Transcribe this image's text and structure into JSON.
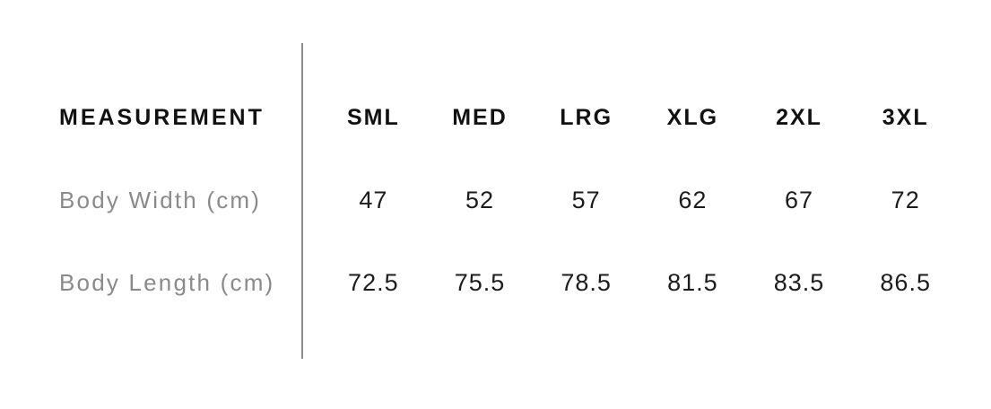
{
  "chart_data": {
    "type": "table",
    "columns": [
      "MEASUREMENT",
      "SML",
      "MED",
      "LRG",
      "XLG",
      "2XL",
      "3XL"
    ],
    "rows": [
      [
        "Body Width (cm)",
        47,
        52,
        57,
        62,
        67,
        72
      ],
      [
        "Body Length (cm)",
        72.5,
        75.5,
        78.5,
        81.5,
        83.5,
        86.5
      ]
    ],
    "layout_hints": {
      "grid": "off",
      "vertical_divider_between_label_and_values": true
    }
  },
  "size_chart": {
    "header": {
      "measurement_label": "MEASUREMENT",
      "sizes": [
        "SML",
        "MED",
        "LRG",
        "XLG",
        "2XL",
        "3XL"
      ]
    },
    "rows": [
      {
        "label": "Body Width (cm)",
        "values": [
          "47",
          "52",
          "57",
          "62",
          "67",
          "72"
        ]
      },
      {
        "label": "Body Length (cm)",
        "values": [
          "72.5",
          "75.5",
          "78.5",
          "81.5",
          "83.5",
          "86.5"
        ]
      }
    ],
    "colors": {
      "background": "#ffffff",
      "header_text": "#111111",
      "row_label_text": "#8a8a8a",
      "value_text": "#1c1c1c",
      "divider": "#8c8c8c"
    }
  }
}
